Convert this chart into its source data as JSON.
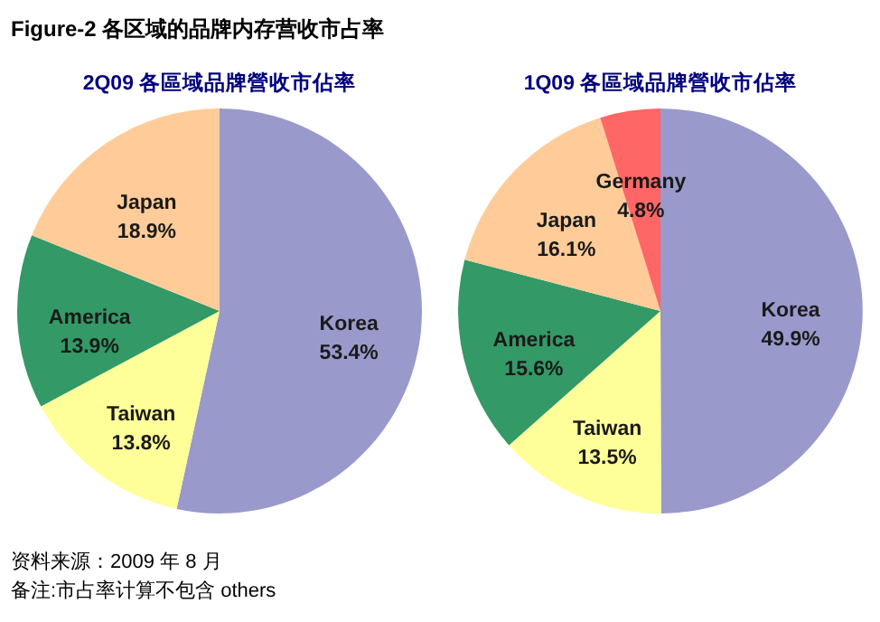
{
  "chart_data": [
    {
      "type": "pie",
      "title": "Figure-2 各区域的品牌内存营收市占率",
      "subtitle": "2Q09 各區域品牌營收市佔率",
      "categories": [
        "Korea",
        "Taiwan",
        "America",
        "Japan"
      ],
      "values": [
        53.4,
        13.8,
        13.9,
        18.9
      ],
      "value_labels": [
        "53.4%",
        "13.8%",
        "13.9%",
        "18.9%"
      ],
      "colors": [
        "#9999cc",
        "#ffff99",
        "#339966",
        "#ffcc99"
      ],
      "annotations": [
        "资料来源：2009 年 8 月",
        "备注:市占率计算不包含 others"
      ]
    },
    {
      "type": "pie",
      "title": "1Q09 各區域品牌營收市佔率",
      "categories": [
        "Korea",
        "Taiwan",
        "America",
        "Japan",
        "Germany"
      ],
      "values": [
        49.9,
        13.5,
        15.6,
        16.1,
        4.8
      ],
      "value_labels": [
        "49.9%",
        "13.5%",
        "15.6%",
        "16.1%",
        "4.8%"
      ],
      "colors": [
        "#9999cc",
        "#ffff99",
        "#339966",
        "#ffcc99",
        "#ff6666"
      ]
    }
  ]
}
